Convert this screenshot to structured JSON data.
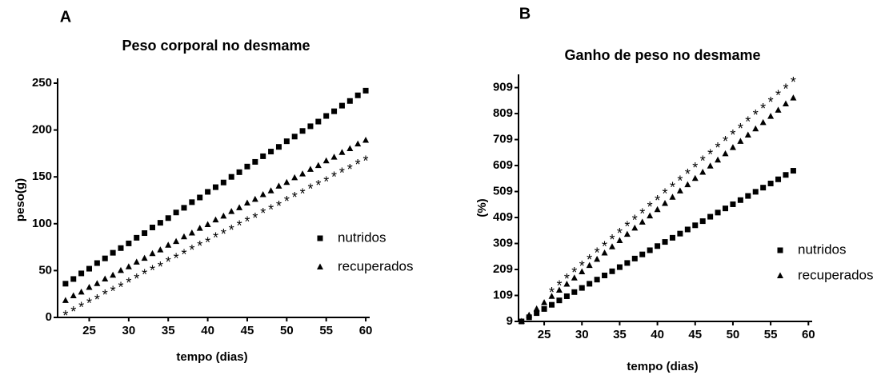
{
  "chart_data": [
    {
      "type": "scatter",
      "panel": "A",
      "title": "Peso corporal no desmame",
      "x_label": "tempo (dias)",
      "y_label": "peso(g)",
      "x": [
        22,
        23,
        24,
        25,
        26,
        27,
        28,
        29,
        30,
        31,
        32,
        33,
        34,
        35,
        36,
        37,
        38,
        39,
        40,
        41,
        42,
        43,
        44,
        45,
        46,
        47,
        48,
        49,
        50,
        51,
        52,
        53,
        54,
        55,
        56,
        57,
        58,
        59,
        60
      ],
      "series": [
        {
          "name": "nutridos",
          "color": "#000000",
          "marker": "square",
          "values": [
            36,
            41,
            47,
            52,
            58,
            63,
            69,
            74,
            79,
            85,
            90,
            96,
            101,
            106,
            112,
            117,
            123,
            128,
            134,
            139,
            144,
            150,
            155,
            161,
            166,
            172,
            177,
            182,
            188,
            193,
            199,
            204,
            209,
            215,
            220,
            226,
            231,
            237,
            242
          ]
        },
        {
          "name": "recuperados",
          "color": "#000000",
          "marker": "triangle",
          "values": [
            18,
            23,
            27,
            32,
            36,
            41,
            45,
            50,
            54,
            59,
            63,
            68,
            72,
            77,
            81,
            86,
            90,
            95,
            99,
            104,
            108,
            113,
            117,
            122,
            126,
            131,
            135,
            140,
            144,
            149,
            153,
            158,
            162,
            167,
            171,
            176,
            180,
            185,
            189
          ]
        }
      ],
      "annotation": {
        "text": "*",
        "x": [
          22,
          23,
          24,
          25,
          26,
          27,
          28,
          29,
          30,
          31,
          32,
          33,
          34,
          35,
          36,
          37,
          38,
          39,
          40,
          41,
          42,
          43,
          44,
          45,
          46,
          47,
          48,
          49,
          50,
          51,
          52,
          53,
          54,
          55,
          56,
          57,
          58,
          59,
          60
        ],
        "y": [
          5,
          9,
          14,
          18,
          22,
          27,
          31,
          35,
          40,
          44,
          49,
          53,
          57,
          62,
          66,
          70,
          75,
          79,
          83,
          88,
          92,
          96,
          101,
          105,
          109,
          114,
          118,
          122,
          127,
          131,
          135,
          140,
          144,
          148,
          153,
          157,
          161,
          166,
          170
        ]
      },
      "xlim": [
        21,
        60.5
      ],
      "xticks": [
        25,
        30,
        35,
        40,
        45,
        50,
        55,
        60
      ],
      "ylim": [
        0,
        250
      ],
      "yticks": [
        0,
        50,
        100,
        150,
        200,
        250
      ],
      "legend": "right"
    },
    {
      "type": "scatter",
      "panel": "B",
      "title": "Ganho de peso no desmame",
      "x_label": "tempo (dias)",
      "y_label": "(%)",
      "x": [
        22,
        23,
        24,
        25,
        26,
        27,
        28,
        29,
        30,
        31,
        32,
        33,
        34,
        35,
        36,
        37,
        38,
        39,
        40,
        41,
        42,
        43,
        44,
        45,
        46,
        47,
        48,
        49,
        50,
        51,
        52,
        53,
        54,
        55,
        56,
        57,
        58
      ],
      "series": [
        {
          "name": "nutridos",
          "color": "#000000",
          "marker": "square",
          "values": [
            9,
            25,
            41,
            57,
            73,
            90,
            106,
            122,
            138,
            154,
            170,
            186,
            202,
            218,
            234,
            251,
            267,
            283,
            299,
            315,
            331,
            347,
            363,
            379,
            395,
            412,
            428,
            444,
            460,
            476,
            492,
            508,
            524,
            540,
            556,
            573,
            589
          ]
        },
        {
          "name": "recuperados",
          "color": "#000000",
          "marker": "triangle",
          "values": [
            9,
            33,
            57,
            81,
            105,
            129,
            152,
            176,
            200,
            224,
            248,
            272,
            296,
            320,
            344,
            368,
            391,
            415,
            439,
            463,
            487,
            511,
            535,
            559,
            583,
            607,
            630,
            654,
            678,
            702,
            726,
            750,
            774,
            798,
            822,
            846,
            869
          ]
        }
      ],
      "annotation": {
        "text": "*",
        "x": [
          26,
          27,
          28,
          29,
          30,
          31,
          32,
          33,
          34,
          35,
          36,
          37,
          38,
          39,
          40,
          41,
          42,
          43,
          44,
          45,
          46,
          47,
          48,
          49,
          50,
          51,
          52,
          53,
          54,
          55,
          56,
          57,
          58
        ],
        "y": [
          132,
          157,
          183,
          208,
          233,
          258,
          284,
          309,
          334,
          359,
          385,
          410,
          435,
          460,
          486,
          511,
          536,
          561,
          587,
          612,
          637,
          662,
          688,
          713,
          738,
          763,
          789,
          814,
          839,
          864,
          890,
          915,
          940
        ]
      },
      "xlim": [
        21.6,
        60.5
      ],
      "xticks": [
        25,
        30,
        35,
        40,
        45,
        50,
        55,
        60
      ],
      "ylim": [
        9,
        960
      ],
      "yticks": [
        9,
        109,
        209,
        309,
        409,
        509,
        609,
        709,
        809,
        909
      ],
      "legend": "right"
    }
  ]
}
